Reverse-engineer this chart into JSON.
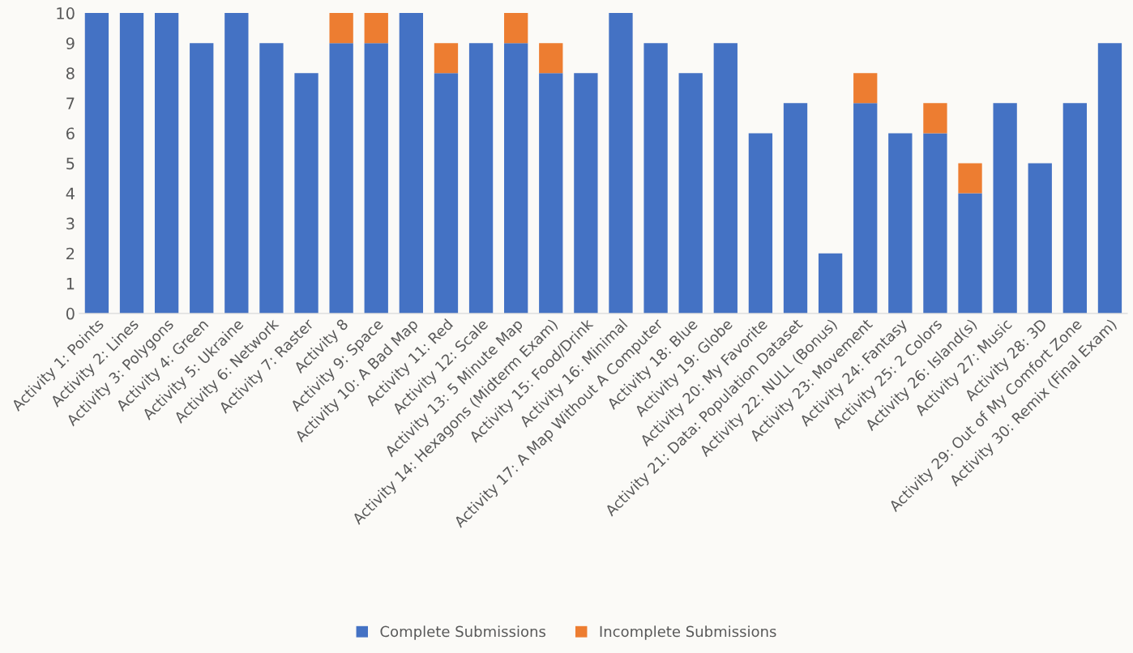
{
  "chart_data": {
    "type": "bar",
    "stacked": true,
    "categories": [
      "Activity 1: Points",
      "Activity 2: Lines",
      "Activity 3: Polygons",
      "Activity 4: Green",
      "Activity 5: Ukraine",
      "Activity 6: Network",
      "Activity 7: Raster",
      "Activity 8",
      "Activity 9: Space",
      "Activity 10: A Bad Map",
      "Activity 11: Red",
      "Activity 12: Scale",
      "Activity 13: 5 Minute Map",
      "Activity 14: Hexagons (Midterm Exam)",
      "Activity 15: Food/Drink",
      "Activity 16: Minimal",
      "Activity 17: A Map Without A Computer",
      "Activity 18: Blue",
      "Activity 19: Globe",
      "Activity 20: My Favorite",
      "Activity 21: Data: Population Dataset",
      "Activity 22: NULL (Bonus)",
      "Activity 23: Movement",
      "Activity 24: Fantasy",
      "Activity 25: 2 Colors",
      "Activity 26: Island(s)",
      "Activity 27: Music",
      "Activity 28: 3D",
      "Activity 29: Out of My Comfort Zone",
      "Activity 30: Remix (Final Exam)"
    ],
    "series": [
      {
        "name": "Complete Submissions",
        "color": "#4472c4",
        "values": [
          10,
          10,
          10,
          9,
          10,
          9,
          8,
          9,
          9,
          10,
          8,
          9,
          9,
          8,
          8,
          10,
          9,
          8,
          9,
          6,
          7,
          2,
          7,
          6,
          6,
          4,
          7,
          5,
          7,
          9
        ]
      },
      {
        "name": "Incomplete Submissions",
        "color": "#ed7d31",
        "values": [
          0,
          0,
          0,
          0,
          0,
          0,
          0,
          1,
          1,
          0,
          1,
          0,
          1,
          1,
          0,
          0,
          0,
          0,
          0,
          0,
          0,
          0,
          1,
          0,
          1,
          1,
          0,
          0,
          0,
          0
        ]
      }
    ],
    "ylim": [
      0,
      10
    ],
    "yticks": [
      0,
      1,
      2,
      3,
      4,
      5,
      6,
      7,
      8,
      9,
      10
    ],
    "grid": false,
    "legend": "bottom"
  }
}
